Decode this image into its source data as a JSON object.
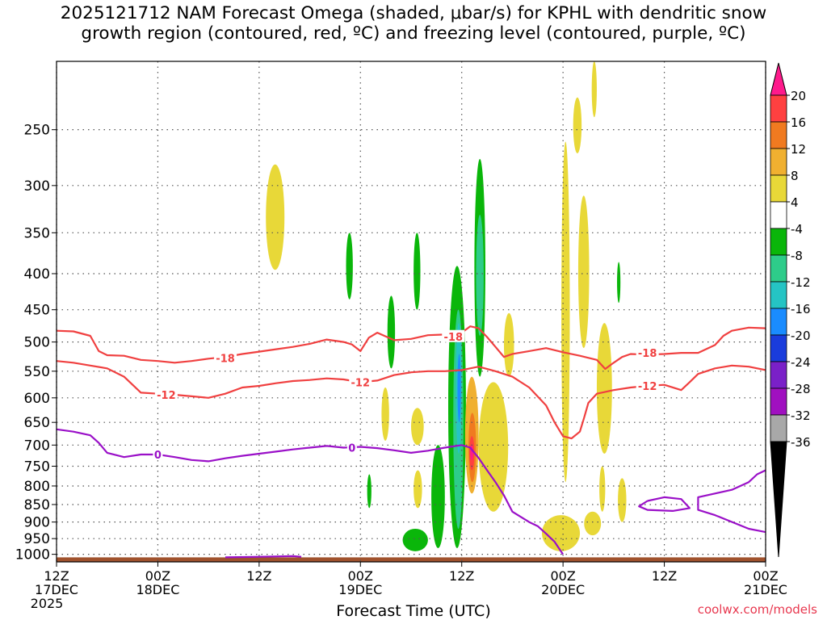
{
  "title": {
    "line1": "2025121712 NAM Forecast Omega (shaded, μbar/s) for KPHL with dendritic snow",
    "line2": "growth region (contoured, red, ºC) and freezing level (contoured, purple, ºC)"
  },
  "credit": "coolwx.com/models",
  "chart_data": {
    "type": "heatmap",
    "title": "2025121712 NAM Forecast Omega (shaded, μbar/s) for KPHL with dendritic snow growth region (contoured, red, ºC) and freezing level (contoured, purple, ºC)",
    "xlabel": "Forecast Time (UTC)",
    "ylabel": "",
    "x_ticks": [
      {
        "hour": 0,
        "label1": "12Z",
        "label2": "17DEC",
        "label3": "2025"
      },
      {
        "hour": 12,
        "label1": "00Z",
        "label2": "18DEC",
        "label3": ""
      },
      {
        "hour": 24,
        "label1": "12Z",
        "label2": "",
        "label3": ""
      },
      {
        "hour": 36,
        "label1": "00Z",
        "label2": "19DEC",
        "label3": ""
      },
      {
        "hour": 48,
        "label1": "12Z",
        "label2": "",
        "label3": ""
      },
      {
        "hour": 60,
        "label1": "00Z",
        "label2": "20DEC",
        "label3": ""
      },
      {
        "hour": 72,
        "label1": "12Z",
        "label2": "",
        "label3": ""
      },
      {
        "hour": 84,
        "label1": "00Z",
        "label2": "21DEC",
        "label3": ""
      }
    ],
    "y_ticks": [
      250,
      300,
      350,
      400,
      450,
      500,
      550,
      600,
      650,
      700,
      750,
      800,
      850,
      900,
      950,
      1000
    ],
    "y_range_hpa": [
      200,
      1025
    ],
    "x_range_hours": [
      0,
      84
    ],
    "y_axis": "pressure (hPa), log scale, inverted",
    "grid": true,
    "colorbar": {
      "labels": [
        "20",
        "16",
        "12",
        "8",
        "4",
        "-4",
        "-8",
        "-12",
        "-16",
        "-20",
        "-24",
        "-28",
        "-32",
        "-36"
      ],
      "colors": [
        "#ff1a8c",
        "#ff4040",
        "#f07a20",
        "#f0b030",
        "#e8d838",
        "#ffffff",
        "#0ab60a",
        "#2ecc8a",
        "#25c4c4",
        "#1a8cff",
        "#1a3cdc",
        "#7a20c8",
        "#a010c0",
        "#a8a8a8"
      ],
      "bottom_triangle": "#000000"
    },
    "series": [
      {
        "name": "-18",
        "color": "#f04040",
        "points": [
          [
            0,
            482
          ],
          [
            2,
            483
          ],
          [
            4,
            490
          ],
          [
            5,
            515
          ],
          [
            6,
            522
          ],
          [
            8,
            523
          ],
          [
            10,
            530
          ],
          [
            12,
            532
          ],
          [
            14,
            535
          ],
          [
            16,
            532
          ],
          [
            18,
            528
          ],
          [
            20,
            525
          ],
          [
            22,
            520
          ],
          [
            24,
            516
          ],
          [
            26,
            512
          ],
          [
            28,
            508
          ],
          [
            30,
            503
          ],
          [
            32,
            496
          ],
          [
            34,
            500
          ],
          [
            35,
            504
          ],
          [
            36,
            515
          ],
          [
            37,
            493
          ],
          [
            38,
            485
          ],
          [
            40,
            497
          ],
          [
            42,
            495
          ],
          [
            44,
            489
          ],
          [
            46,
            488
          ],
          [
            48,
            485
          ],
          [
            49,
            475
          ],
          [
            50,
            478
          ],
          [
            51,
            492
          ],
          [
            52,
            508
          ],
          [
            53,
            525
          ],
          [
            54,
            520
          ],
          [
            56,
            515
          ],
          [
            58,
            510
          ],
          [
            60,
            517
          ],
          [
            62,
            523
          ],
          [
            64,
            530
          ],
          [
            64.5,
            538
          ],
          [
            65,
            546
          ],
          [
            66,
            535
          ],
          [
            67,
            525
          ],
          [
            68,
            520
          ],
          [
            70,
            521
          ],
          [
            72,
            520
          ],
          [
            74,
            518
          ],
          [
            76,
            518
          ],
          [
            78,
            505
          ],
          [
            79,
            490
          ],
          [
            80,
            482
          ],
          [
            82,
            477
          ],
          [
            84,
            478
          ]
        ]
      },
      {
        "name": "-12",
        "color": "#f04040",
        "points": [
          [
            0,
            532
          ],
          [
            2,
            535
          ],
          [
            4,
            540
          ],
          [
            6,
            545
          ],
          [
            8,
            560
          ],
          [
            10,
            590
          ],
          [
            12,
            592
          ],
          [
            14,
            594
          ],
          [
            16,
            597
          ],
          [
            18,
            600
          ],
          [
            20,
            592
          ],
          [
            22,
            580
          ],
          [
            24,
            577
          ],
          [
            26,
            572
          ],
          [
            28,
            568
          ],
          [
            30,
            566
          ],
          [
            32,
            563
          ],
          [
            34,
            565
          ],
          [
            36,
            570
          ],
          [
            38,
            567
          ],
          [
            40,
            557
          ],
          [
            42,
            552
          ],
          [
            44,
            550
          ],
          [
            46,
            550
          ],
          [
            48,
            548
          ],
          [
            50,
            542
          ],
          [
            52,
            550
          ],
          [
            54,
            560
          ],
          [
            56,
            580
          ],
          [
            58,
            615
          ],
          [
            59,
            650
          ],
          [
            60,
            680
          ],
          [
            61,
            685
          ],
          [
            62,
            670
          ],
          [
            62.5,
            640
          ],
          [
            63,
            610
          ],
          [
            64,
            592
          ],
          [
            66,
            585
          ],
          [
            68,
            580
          ],
          [
            70,
            577
          ],
          [
            72,
            575
          ],
          [
            74,
            585
          ],
          [
            75,
            570
          ],
          [
            76,
            555
          ],
          [
            78,
            545
          ],
          [
            80,
            540
          ],
          [
            82,
            542
          ],
          [
            84,
            548
          ]
        ]
      },
      {
        "name": "0",
        "color": "#9a10c8",
        "points": [
          [
            0,
            665
          ],
          [
            2,
            670
          ],
          [
            4,
            678
          ],
          [
            5,
            695
          ],
          [
            6,
            718
          ],
          [
            8,
            728
          ],
          [
            10,
            722
          ],
          [
            12,
            722
          ],
          [
            14,
            728
          ],
          [
            16,
            735
          ],
          [
            18,
            738
          ],
          [
            20,
            731
          ],
          [
            22,
            725
          ],
          [
            24,
            720
          ],
          [
            26,
            715
          ],
          [
            28,
            710
          ],
          [
            30,
            706
          ],
          [
            32,
            702
          ],
          [
            34,
            706
          ],
          [
            36,
            704
          ],
          [
            38,
            707
          ],
          [
            40,
            712
          ],
          [
            42,
            718
          ],
          [
            44,
            713
          ],
          [
            46,
            706
          ],
          [
            48,
            700
          ],
          [
            49,
            706
          ],
          [
            50,
            730
          ],
          [
            51,
            760
          ],
          [
            52,
            790
          ],
          [
            53,
            825
          ],
          [
            54,
            870
          ],
          [
            56,
            900
          ],
          [
            57,
            912
          ],
          [
            58,
            935
          ],
          [
            59,
            960
          ],
          [
            60,
            1000
          ]
        ]
      },
      {
        "name": "0 (lower)",
        "color": "#9a10c8",
        "points": [
          [
            20,
            1010
          ],
          [
            24,
            1008
          ],
          [
            28,
            1006
          ],
          [
            29,
            1008
          ]
        ]
      },
      {
        "name": "0 (right)",
        "color": "#9a10c8",
        "points": [
          [
            84,
            760
          ],
          [
            83,
            770
          ],
          [
            82,
            790
          ],
          [
            80,
            810
          ],
          [
            78,
            820
          ],
          [
            76,
            830
          ],
          [
            76,
            865
          ],
          [
            78,
            880
          ],
          [
            82,
            920
          ],
          [
            84,
            930
          ]
        ]
      },
      {
        "name": "0 (loop)",
        "color": "#9a10c8",
        "points": [
          [
            70,
            840
          ],
          [
            72,
            830
          ],
          [
            74,
            835
          ],
          [
            75,
            860
          ],
          [
            73,
            868
          ],
          [
            70,
            865
          ],
          [
            69,
            855
          ],
          [
            70,
            840
          ]
        ]
      }
    ],
    "contour_labels": [
      {
        "text": "-18",
        "x": 20,
        "y": 527
      },
      {
        "text": "-18",
        "x": 47,
        "y": 491
      },
      {
        "text": "-18",
        "x": 70,
        "y": 518
      },
      {
        "text": "-12",
        "x": 13,
        "y": 594
      },
      {
        "text": "-12",
        "x": 36,
        "y": 570
      },
      {
        "text": "-12",
        "x": 70,
        "y": 577
      },
      {
        "text": "0",
        "x": 12,
        "y": 722
      },
      {
        "text": "0",
        "x": 35,
        "y": 706
      }
    ],
    "omega_regions": [
      {
        "value": 6,
        "color": "#e8d838",
        "t0": 24.8,
        "t1": 27,
        "p_top": 280,
        "p_bot": 395
      },
      {
        "value": 6,
        "color": "#e8d838",
        "t0": 38.5,
        "t1": 39.4,
        "p_top": 580,
        "p_bot": 690
      },
      {
        "value": 6,
        "color": "#e8d838",
        "t0": 42.3,
        "t1": 43.3,
        "p_top": 760,
        "p_bot": 860
      },
      {
        "value": 6,
        "color": "#e8d838",
        "t0": 53,
        "t1": 54.2,
        "p_top": 455,
        "p_bot": 560
      },
      {
        "value": 6,
        "color": "#e8d838",
        "t0": 59.8,
        "t1": 60.8,
        "p_top": 260,
        "p_bot": 790
      },
      {
        "value": 6,
        "color": "#e8d838",
        "t0": 61.2,
        "t1": 62.2,
        "p_top": 225,
        "p_bot": 270
      },
      {
        "value": 6,
        "color": "#e8d838",
        "t0": 61.8,
        "t1": 63.1,
        "p_top": 310,
        "p_bot": 510
      },
      {
        "value": 6,
        "color": "#e8d838",
        "t0": 64,
        "t1": 65.8,
        "p_top": 470,
        "p_bot": 720
      },
      {
        "value": 6,
        "color": "#e8d838",
        "t0": 64.3,
        "t1": 65,
        "p_top": 750,
        "p_bot": 870
      },
      {
        "value": 6,
        "color": "#e8d838",
        "t0": 57.5,
        "t1": 62,
        "p_top": 880,
        "p_bot": 990
      },
      {
        "value": 6,
        "color": "#e8d838",
        "t0": 62.5,
        "t1": 64.5,
        "p_top": 870,
        "p_bot": 940
      },
      {
        "value": 6,
        "color": "#e8d838",
        "t0": 66.5,
        "t1": 67.5,
        "p_top": 780,
        "p_bot": 900
      },
      {
        "value": 6,
        "color": "#e8d838",
        "t0": 63.4,
        "t1": 64,
        "p_top": 200,
        "p_bot": 240
      },
      {
        "value": 6,
        "color": "#e8d838",
        "t0": 50,
        "t1": 53.5,
        "p_top": 570,
        "p_bot": 870
      },
      {
        "value": 6,
        "color": "#e8d838",
        "t0": 42,
        "t1": 43.5,
        "p_top": 620,
        "p_bot": 700
      },
      {
        "value": -6,
        "color": "#0ab60a",
        "t0": 34.3,
        "t1": 35.1,
        "p_top": 350,
        "p_bot": 435
      },
      {
        "value": -6,
        "color": "#0ab60a",
        "t0": 39.2,
        "t1": 40.1,
        "p_top": 430,
        "p_bot": 545
      },
      {
        "value": -6,
        "color": "#0ab60a",
        "t0": 42.3,
        "t1": 43.1,
        "p_top": 350,
        "p_bot": 450
      },
      {
        "value": -6,
        "color": "#0ab60a",
        "t0": 36.8,
        "t1": 37.3,
        "p_top": 770,
        "p_bot": 860
      },
      {
        "value": -6,
        "color": "#0ab60a",
        "t0": 41,
        "t1": 44,
        "p_top": 920,
        "p_bot": 990
      },
      {
        "value": -6,
        "color": "#0ab60a",
        "t0": 44.4,
        "t1": 46,
        "p_top": 700,
        "p_bot": 980
      },
      {
        "value": -6,
        "color": "#0ab60a",
        "t0": 46.4,
        "t1": 48.5,
        "p_top": 390,
        "p_bot": 980
      },
      {
        "value": -6,
        "color": "#0ab60a",
        "t0": 49.5,
        "t1": 50.8,
        "p_top": 275,
        "p_bot": 560
      },
      {
        "value": -6,
        "color": "#0ab60a",
        "t0": 66.4,
        "t1": 66.8,
        "p_top": 385,
        "p_bot": 440
      },
      {
        "value": -10,
        "color": "#2ecc8a",
        "t0": 47,
        "t1": 48.2,
        "p_top": 450,
        "p_bot": 920
      },
      {
        "value": -10,
        "color": "#2ecc8a",
        "t0": 49.7,
        "t1": 50.6,
        "p_top": 330,
        "p_bot": 490
      },
      {
        "value": -14,
        "color": "#25c4c4",
        "t0": 47.3,
        "t1": 48,
        "p_top": 470,
        "p_bot": 720
      },
      {
        "value": -18,
        "color": "#1a8cff",
        "t0": 47.5,
        "t1": 47.9,
        "p_top": 520,
        "p_bot": 650
      },
      {
        "value": 10,
        "color": "#f0b030",
        "t0": 48.4,
        "t1": 50,
        "p_top": 560,
        "p_bot": 820
      },
      {
        "value": 14,
        "color": "#f07a20",
        "t0": 48.8,
        "t1": 49.7,
        "p_top": 630,
        "p_bot": 790
      },
      {
        "value": 18,
        "color": "#ff4040",
        "t0": 48.9,
        "t1": 49.5,
        "p_top": 680,
        "p_bot": 760
      },
      {
        "value": 20,
        "color": "#ff1a8c",
        "t0": 49,
        "t1": 49.35,
        "p_top": 700,
        "p_bot": 735
      }
    ],
    "terrain": {
      "color": "#a0522d",
      "p_top": 1010
    }
  }
}
